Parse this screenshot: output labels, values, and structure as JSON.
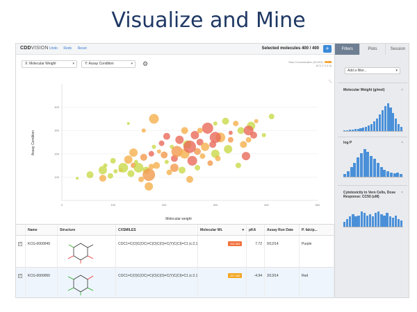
{
  "slide": {
    "title": "Visualize and Mine"
  },
  "app": {
    "logo_main": "CDD",
    "logo_sub": "VISION",
    "links": [
      "Undo",
      "Redo",
      "Reset"
    ],
    "selected": "Selected molecules 400 / 400",
    "plus_label": "+"
  },
  "right_tabs": [
    "Filters",
    "Plots",
    "Session"
  ],
  "controls": {
    "x_select": "X: Molecular Weight",
    "y_select": "Y: Assay Condition",
    "legend_label": "Raw Concentration (ID:001)",
    "legend_range": "(IC1 2 3 4 5)"
  },
  "chart_data": {
    "type": "scatter",
    "xlabel": "Molecular weight",
    "ylabel": "Assay Condition",
    "xlim": [
      0,
      500
    ],
    "ylim": [
      0,
      500
    ],
    "xticks": [
      "0",
      "100",
      "200",
      "300",
      "400",
      "500"
    ],
    "yticks": [
      "100",
      "200",
      "300",
      "400"
    ],
    "grid": true,
    "points": [
      {
        "x": 30,
        "y": 95,
        "r": 2,
        "c": "#c9d94a"
      },
      {
        "x": 55,
        "y": 110,
        "r": 5,
        "c": "#c9d94a"
      },
      {
        "x": 80,
        "y": 95,
        "r": 5,
        "c": "#f5b04d"
      },
      {
        "x": 85,
        "y": 150,
        "r": 3,
        "c": "#c9d94a"
      },
      {
        "x": 80,
        "y": 130,
        "r": 6,
        "c": "#c9d94a"
      },
      {
        "x": 95,
        "y": 105,
        "r": 4,
        "c": "#c9d94a"
      },
      {
        "x": 100,
        "y": 170,
        "r": 4,
        "c": "#c9d94a"
      },
      {
        "x": 115,
        "y": 130,
        "r": 3,
        "c": "#f5b04d"
      },
      {
        "x": 120,
        "y": 140,
        "r": 7,
        "c": "#c9d94a"
      },
      {
        "x": 130,
        "y": 175,
        "r": 6,
        "c": "#f5b04d"
      },
      {
        "x": 130,
        "y": 330,
        "r": 2,
        "c": "#c9d94a"
      },
      {
        "x": 135,
        "y": 115,
        "r": 5,
        "c": "#c9d94a"
      },
      {
        "x": 140,
        "y": 150,
        "r": 4,
        "c": "#f39a4d"
      },
      {
        "x": 140,
        "y": 205,
        "r": 6,
        "c": "#f5b04d"
      },
      {
        "x": 150,
        "y": 140,
        "r": 7,
        "c": "#c9d94a"
      },
      {
        "x": 155,
        "y": 90,
        "r": 4,
        "c": "#f5b04d"
      },
      {
        "x": 160,
        "y": 300,
        "r": 3,
        "c": "#f5b04d"
      },
      {
        "x": 160,
        "y": 185,
        "r": 5,
        "c": "#f39a4d"
      },
      {
        "x": 165,
        "y": 130,
        "r": 5,
        "c": "#c9d94a"
      },
      {
        "x": 170,
        "y": 110,
        "r": 9,
        "c": "#f39a4d"
      },
      {
        "x": 175,
        "y": 145,
        "r": 4,
        "c": "#f5b04d"
      },
      {
        "x": 170,
        "y": 60,
        "r": 6,
        "c": "#f5b04d"
      },
      {
        "x": 175,
        "y": 200,
        "r": 4,
        "c": "#e86a5a"
      },
      {
        "x": 180,
        "y": 230,
        "r": 3,
        "c": "#c9d94a"
      },
      {
        "x": 180,
        "y": 350,
        "r": 7,
        "c": "#f5b04d"
      },
      {
        "x": 185,
        "y": 150,
        "r": 5,
        "c": "#f5b04d"
      },
      {
        "x": 190,
        "y": 210,
        "r": 3,
        "c": "#f5b04d"
      },
      {
        "x": 195,
        "y": 245,
        "r": 4,
        "c": "#e86a5a"
      },
      {
        "x": 200,
        "y": 195,
        "r": 5,
        "c": "#f39a4d"
      },
      {
        "x": 205,
        "y": 275,
        "r": 5,
        "c": "#e86a5a"
      },
      {
        "x": 205,
        "y": 165,
        "r": 3,
        "c": "#c9d94a"
      },
      {
        "x": 210,
        "y": 120,
        "r": 4,
        "c": "#f5b04d"
      },
      {
        "x": 215,
        "y": 230,
        "r": 3,
        "c": "#c9d94a"
      },
      {
        "x": 220,
        "y": 140,
        "r": 6,
        "c": "#f39a4d"
      },
      {
        "x": 220,
        "y": 180,
        "r": 5,
        "c": "#e86a5a"
      },
      {
        "x": 225,
        "y": 210,
        "r": 8,
        "c": "#f39a4d"
      },
      {
        "x": 230,
        "y": 260,
        "r": 6,
        "c": "#e86a5a"
      },
      {
        "x": 235,
        "y": 130,
        "r": 5,
        "c": "#c9d94a"
      },
      {
        "x": 240,
        "y": 200,
        "r": 7,
        "c": "#f5b04d"
      },
      {
        "x": 240,
        "y": 300,
        "r": 5,
        "c": "#f5b04d"
      },
      {
        "x": 245,
        "y": 240,
        "r": 6,
        "c": "#c9d94a"
      },
      {
        "x": 250,
        "y": 90,
        "r": 5,
        "c": "#f5b04d"
      },
      {
        "x": 255,
        "y": 170,
        "r": 7,
        "c": "#e86a5a"
      },
      {
        "x": 260,
        "y": 280,
        "r": 6,
        "c": "#e86a5a"
      },
      {
        "x": 265,
        "y": 210,
        "r": 5,
        "c": "#f39a4d"
      },
      {
        "x": 265,
        "y": 140,
        "r": 4,
        "c": "#c9d94a"
      },
      {
        "x": 270,
        "y": 250,
        "r": 5,
        "c": "#e86a5a"
      },
      {
        "x": 275,
        "y": 190,
        "r": 4,
        "c": "#f5b04d"
      },
      {
        "x": 280,
        "y": 230,
        "r": 6,
        "c": "#f5b04d"
      },
      {
        "x": 285,
        "y": 310,
        "r": 8,
        "c": "#e86a5a"
      },
      {
        "x": 290,
        "y": 160,
        "r": 4,
        "c": "#f39a4d"
      },
      {
        "x": 295,
        "y": 240,
        "r": 5,
        "c": "#e86a5a"
      },
      {
        "x": 300,
        "y": 200,
        "r": 6,
        "c": "#c9d94a"
      },
      {
        "x": 300,
        "y": 330,
        "r": 3,
        "c": "#c9d94a"
      },
      {
        "x": 305,
        "y": 180,
        "r": 4,
        "c": "#f5b04d"
      },
      {
        "x": 310,
        "y": 270,
        "r": 7,
        "c": "#f5b04d"
      },
      {
        "x": 320,
        "y": 340,
        "r": 5,
        "c": "#c9d94a"
      },
      {
        "x": 325,
        "y": 220,
        "r": 6,
        "c": "#c9d94a"
      },
      {
        "x": 330,
        "y": 260,
        "r": 4,
        "c": "#f39a4d"
      },
      {
        "x": 340,
        "y": 330,
        "r": 4,
        "c": "#f5b04d"
      },
      {
        "x": 345,
        "y": 150,
        "r": 4,
        "c": "#c9d94a"
      },
      {
        "x": 350,
        "y": 300,
        "r": 5,
        "c": "#c9d94a"
      },
      {
        "x": 355,
        "y": 240,
        "r": 5,
        "c": "#f5b04d"
      },
      {
        "x": 360,
        "y": 190,
        "r": 6,
        "c": "#e86a5a"
      },
      {
        "x": 365,
        "y": 260,
        "r": 4,
        "c": "#f5b04d"
      },
      {
        "x": 370,
        "y": 320,
        "r": 6,
        "c": "#c9d94a"
      },
      {
        "x": 375,
        "y": 280,
        "r": 5,
        "c": "#e86a5a"
      },
      {
        "x": 380,
        "y": 340,
        "r": 3,
        "c": "#f5b04d"
      },
      {
        "x": 395,
        "y": 280,
        "r": 3,
        "c": "#c9d94a"
      },
      {
        "x": 410,
        "y": 360,
        "r": 4,
        "c": "#c9d94a"
      },
      {
        "x": 250,
        "y": 230,
        "r": 9,
        "c": "#e86a5a"
      },
      {
        "x": 270,
        "y": 300,
        "r": 4,
        "c": "#f5b04d"
      },
      {
        "x": 300,
        "y": 270,
        "r": 8,
        "c": "#e86a5a"
      },
      {
        "x": 330,
        "y": 290,
        "r": 3,
        "c": "#e86a5a"
      },
      {
        "x": 365,
        "y": 300,
        "r": 7,
        "c": "#e86a5a"
      },
      {
        "x": 105,
        "y": 125,
        "r": 3,
        "c": "#c9d94a"
      },
      {
        "x": 145,
        "y": 165,
        "r": 3,
        "c": "#c9d94a"
      }
    ]
  },
  "table": {
    "headers": [
      "",
      "Name",
      "Structure",
      "CXSMILES",
      "Molecular Wt.",
      "pKA",
      "Assay Run Date",
      "P. falcip..."
    ],
    "rows": [
      {
        "check": "✓",
        "name": "KCG-0000049",
        "smiles": "COC1=C(O)C(OC)=C(O)C(O)=C(Y)C(Cl)=C1 |c:2,11,t:7|",
        "mw": "284.365",
        "mw_color": "#f0703c",
        "pka": "7.72",
        "date": "9/12/14",
        "pf": "Purple"
      },
      {
        "check": "✓",
        "name": "KCG-0000050",
        "smiles": "COC1=C(O)C(OC)=C(O)C(O)=C(Y)C(Cl)=C1 |c:2,11,t:7|",
        "mw": "267.468",
        "mw_color": "#f5a623",
        "pka": "-4.94",
        "date": "3/13/14",
        "pf": "Red"
      }
    ]
  },
  "filters": {
    "add_label": "Add a filter...",
    "cards": [
      {
        "title": "Molecular Weight (g/mol)",
        "values": [
          1,
          1,
          2,
          2,
          3,
          3,
          4,
          5,
          6,
          8,
          10,
          14,
          18,
          24,
          30,
          36,
          40,
          34,
          26,
          18,
          10,
          6
        ]
      },
      {
        "title": "log P",
        "values": [
          4,
          8,
          14,
          20,
          28,
          34,
          40,
          36,
          30,
          26,
          20,
          14,
          10,
          8,
          6,
          5,
          6,
          4
        ]
      },
      {
        "title": "Cytotoxicity in Vero Cells, Dose Response: CC50 (uM)",
        "values": [
          4,
          6,
          8,
          10,
          8,
          9,
          12,
          11,
          9,
          10,
          8,
          11,
          12,
          10,
          9,
          11,
          8,
          7,
          9,
          6,
          5
        ]
      }
    ],
    "remove_glyph": "×"
  }
}
